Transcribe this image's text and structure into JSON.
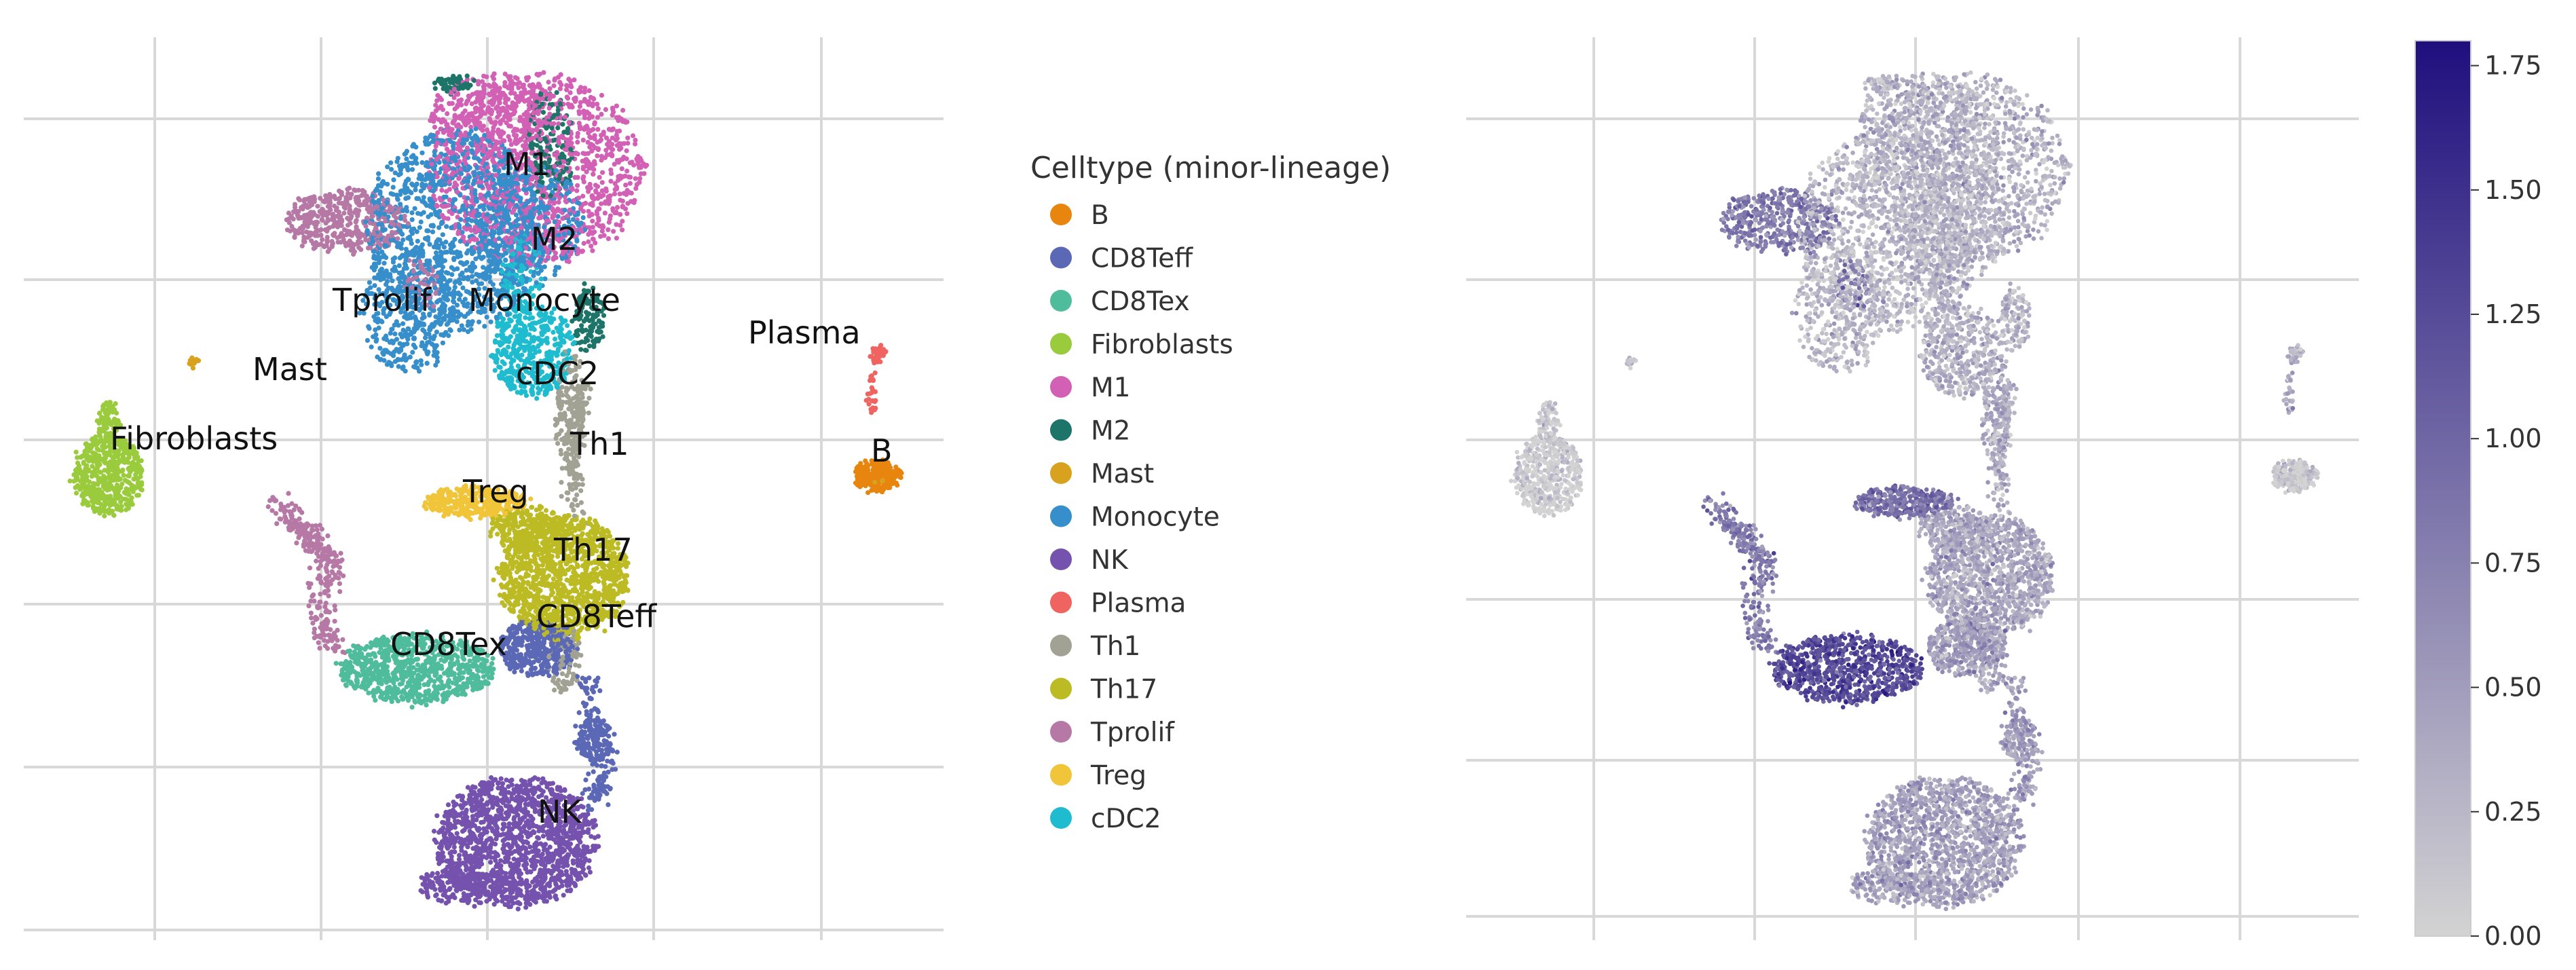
{
  "chart_data": [
    {
      "type": "scatter",
      "title": "",
      "xlabel": "",
      "ylabel": "",
      "grid": true,
      "legend": {
        "title": "Celltype (minor-lineage)",
        "placement": "right"
      },
      "series": [
        {
          "name": "B",
          "color": "#e8850e"
        },
        {
          "name": "CD8Teff",
          "color": "#5b68b6"
        },
        {
          "name": "CD8Tex",
          "color": "#4fbc9c"
        },
        {
          "name": "Fibroblasts",
          "color": "#9acb3c"
        },
        {
          "name": "M1",
          "color": "#d260b4"
        },
        {
          "name": "M2",
          "color": "#1d7468"
        },
        {
          "name": "Mast",
          "color": "#d9a21e"
        },
        {
          "name": "Monocyte",
          "color": "#368ecb"
        },
        {
          "name": "NK",
          "color": "#7452ad"
        },
        {
          "name": "Plasma",
          "color": "#ef6461"
        },
        {
          "name": "Th1",
          "color": "#a1a293"
        },
        {
          "name": "Th17",
          "color": "#bcbb24"
        },
        {
          "name": "Tprolif",
          "color": "#b679a6"
        },
        {
          "name": "Treg",
          "color": "#f1c539"
        },
        {
          "name": "cDC2",
          "color": "#1fbcd0"
        }
      ],
      "annotations": [
        {
          "text": "M1",
          "series": "M1"
        },
        {
          "text": "M2",
          "series": "M2"
        },
        {
          "text": "Tprolif",
          "series": "Tprolif"
        },
        {
          "text": "Monocyte",
          "series": "Monocyte"
        },
        {
          "text": "Plasma",
          "series": "Plasma"
        },
        {
          "text": "Mast",
          "series": "Mast"
        },
        {
          "text": "cDC2",
          "series": "cDC2"
        },
        {
          "text": "Fibroblasts",
          "series": "Fibroblasts"
        },
        {
          "text": "Th1",
          "series": "Th1"
        },
        {
          "text": "B",
          "series": "B"
        },
        {
          "text": "Treg",
          "series": "Treg"
        },
        {
          "text": "Th17",
          "series": "Th17"
        },
        {
          "text": "CD8Teff",
          "series": "CD8Teff"
        },
        {
          "text": "CD8Tex",
          "series": "CD8Tex"
        },
        {
          "text": "NK",
          "series": "NK"
        }
      ]
    },
    {
      "type": "scatter",
      "title": "",
      "xlabel": "",
      "ylabel": "",
      "grid": true,
      "colorbar": {
        "range": [
          0,
          1.8
        ],
        "ticks": [
          "0.00",
          "0.25",
          "0.50",
          "0.75",
          "1.00",
          "1.25",
          "1.50",
          "1.75"
        ],
        "tick_values": [
          0,
          0.25,
          0.5,
          0.75,
          1.0,
          1.25,
          1.5,
          1.75
        ],
        "low_color": "#d3d3d3",
        "high_color": "#1f0f7e",
        "placement": "right"
      }
    }
  ]
}
